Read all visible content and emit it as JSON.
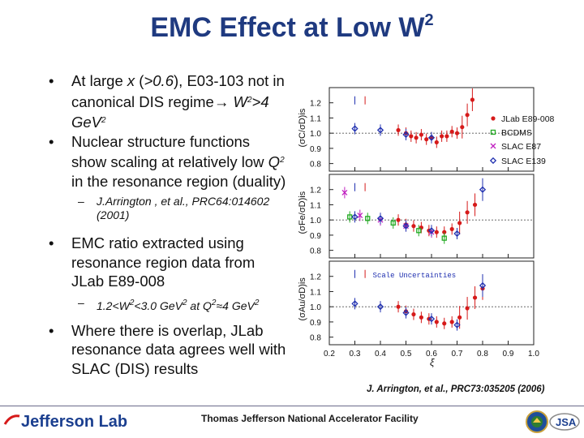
{
  "slide": {
    "title": "EMC Effect at Low W",
    "title_sup": "2",
    "bullets": {
      "b1_p1": "At large ",
      "b1_x": "x",
      "b1_p2": " (",
      "b1_cond": ">0.6",
      "b1_p3": "), E03-103 not in canonical DIS regime",
      "b1_arrow": "→",
      "b1_w": " W",
      "b1_wsup": "2",
      "b1_gev": ">4 GeV",
      "b1_gevsup": "2",
      "b2_p1": "Nuclear structure functions show scaling at relatively low ",
      "b2_q": "Q",
      "b2_qsup": "2",
      "b2_p2": " in the resonance region (duality)",
      "sub1": "J.Arrington , et al., PRC64:014602 (2001)",
      "b3": "EMC ratio extracted using resonance region data from JLab E89-008",
      "sub2_p1": "1.2<W",
      "sub2_s1": "2",
      "sub2_p2": "<3.0 GeV",
      "sub2_s2": "2",
      "sub2_p3": " at  Q",
      "sub2_s3": "2",
      "sub2_p4": "≈4 GeV",
      "sub2_s4": "2",
      "b4": "Where there is overlap, JLab resonance data agrees well with SLAC (DIS) results"
    },
    "citation": "J. Arrington, et al., PRC73:035205 (2006)"
  },
  "footer": {
    "logo": "Jefferson Lab",
    "facility": "Thomas Jefferson National Accelerator Facility",
    "jsa": "JSA"
  },
  "colors": {
    "title": "#1f3a80",
    "jlab": "#d61a1a",
    "bcdms": "#22aa22",
    "slac87": "#c020c0",
    "slac139": "#2030b0"
  },
  "chart_data": {
    "type": "scatter",
    "xlabel": "ξ",
    "xlim": [
      0.2,
      1.0
    ],
    "x_ticks": [
      0.2,
      0.3,
      0.4,
      0.5,
      0.6,
      0.7,
      0.8,
      0.9,
      1.0
    ],
    "ylim": [
      0.75,
      1.3
    ],
    "y_ticks": [
      0.8,
      0.9,
      1.0,
      1.1,
      1.2
    ],
    "legend": [
      "JLab E89-008",
      "BCDMS",
      "SLAC E87",
      "SLAC E139"
    ],
    "scale_label": "Scale Uncertainties",
    "panels": [
      {
        "ylabel": "(σC/σD)is",
        "series": [
          {
            "name": "JLab E89-008",
            "x": [
              0.47,
              0.5,
              0.52,
              0.54,
              0.56,
              0.58,
              0.6,
              0.62,
              0.64,
              0.66,
              0.68,
              0.7,
              0.72,
              0.74,
              0.76
            ],
            "y": [
              1.02,
              1.0,
              0.98,
              0.97,
              0.99,
              0.96,
              0.97,
              0.94,
              0.98,
              0.98,
              1.01,
              1.0,
              1.04,
              1.12,
              1.22
            ]
          },
          {
            "name": "SLAC E139",
            "x": [
              0.3,
              0.4,
              0.5,
              0.6
            ],
            "y": [
              1.03,
              1.02,
              0.99,
              0.97
            ]
          }
        ]
      },
      {
        "ylabel": "(σFe/σD)is",
        "series": [
          {
            "name": "JLab E89-008",
            "x": [
              0.47,
              0.5,
              0.53,
              0.56,
              0.59,
              0.62,
              0.65,
              0.68,
              0.71,
              0.74,
              0.77
            ],
            "y": [
              1.0,
              0.97,
              0.96,
              0.95,
              0.93,
              0.92,
              0.92,
              0.94,
              0.98,
              1.05,
              1.1
            ]
          },
          {
            "name": "BCDMS",
            "x": [
              0.28,
              0.35,
              0.45,
              0.55,
              0.65
            ],
            "y": [
              1.02,
              1.01,
              0.98,
              0.93,
              0.88
            ]
          },
          {
            "name": "SLAC E87",
            "x": [
              0.26,
              0.32,
              0.4,
              0.5,
              0.6
            ],
            "y": [
              1.18,
              1.03,
              1.0,
              0.96,
              0.92
            ]
          },
          {
            "name": "SLAC E139",
            "x": [
              0.3,
              0.4,
              0.5,
              0.6,
              0.7,
              0.8
            ],
            "y": [
              1.02,
              1.01,
              0.96,
              0.93,
              0.91,
              1.2
            ]
          }
        ]
      },
      {
        "ylabel": "(σAu/σD)is",
        "series": [
          {
            "name": "JLab E89-008",
            "x": [
              0.47,
              0.5,
              0.53,
              0.56,
              0.59,
              0.62,
              0.65,
              0.68,
              0.71,
              0.74,
              0.77,
              0.8
            ],
            "y": [
              1.0,
              0.97,
              0.95,
              0.93,
              0.92,
              0.9,
              0.89,
              0.9,
              0.93,
              0.99,
              1.06,
              1.12
            ]
          },
          {
            "name": "SLAC E139",
            "x": [
              0.3,
              0.4,
              0.5,
              0.6,
              0.7,
              0.8
            ],
            "y": [
              1.02,
              1.0,
              0.96,
              0.92,
              0.88,
              1.14
            ]
          }
        ]
      }
    ]
  }
}
